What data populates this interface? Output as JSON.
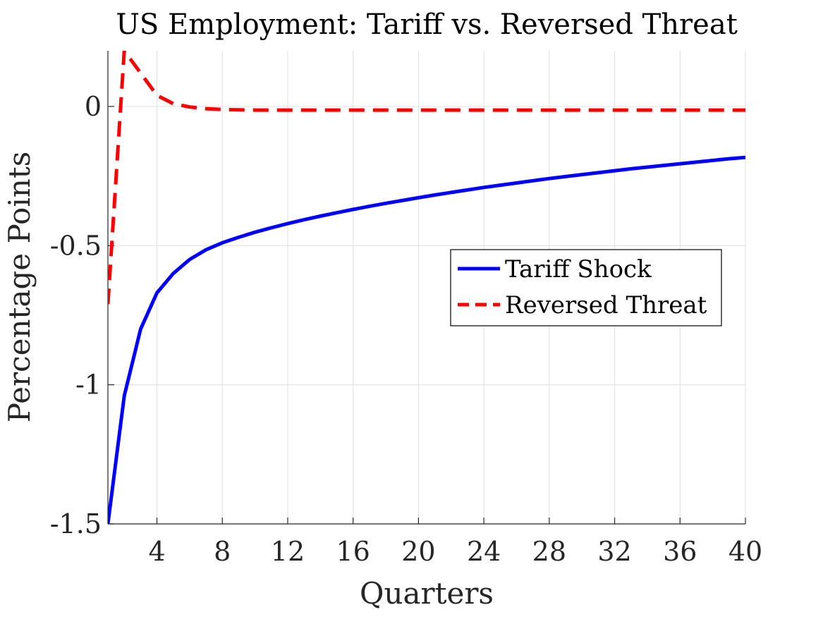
{
  "chart_data": {
    "type": "line",
    "title": "US Employment: Tariff vs. Reversed Threat",
    "xlabel": "Quarters",
    "ylabel": "Percentage Points",
    "xlim": [
      1,
      40
    ],
    "ylim": [
      -1.5,
      0.2
    ],
    "xticks": [
      4,
      8,
      12,
      16,
      20,
      24,
      28,
      32,
      36,
      40
    ],
    "xtick_labels": [
      "4",
      "8",
      "12",
      "16",
      "20",
      "24",
      "28",
      "32",
      "36",
      "40"
    ],
    "yticks": [
      -1.5,
      -1,
      -0.5,
      0
    ],
    "ytick_labels": [
      "-1.5",
      "-1",
      "-0.5",
      "0"
    ],
    "grid": true,
    "legend_position": "center-right",
    "series": [
      {
        "name": "Tariff Shock",
        "color": "#0000ff",
        "style": "solid",
        "x": [
          1,
          2,
          3,
          4,
          5,
          6,
          7,
          8,
          9,
          10,
          11,
          12,
          13,
          14,
          15,
          16,
          17,
          18,
          19,
          20,
          21,
          22,
          23,
          24,
          25,
          26,
          27,
          28,
          29,
          30,
          31,
          32,
          33,
          34,
          35,
          36,
          37,
          38,
          39,
          40
        ],
        "y": [
          -1.5,
          -1.04,
          -0.8,
          -0.67,
          -0.6,
          -0.55,
          -0.515,
          -0.49,
          -0.47,
          -0.452,
          -0.436,
          -0.421,
          -0.407,
          -0.394,
          -0.382,
          -0.37,
          -0.359,
          -0.348,
          -0.338,
          -0.328,
          -0.318,
          -0.309,
          -0.3,
          -0.291,
          -0.283,
          -0.275,
          -0.267,
          -0.259,
          -0.252,
          -0.245,
          -0.238,
          -0.231,
          -0.224,
          -0.218,
          -0.212,
          -0.206,
          -0.2,
          -0.194,
          -0.188,
          -0.183
        ]
      },
      {
        "name": "Reversed Threat",
        "color": "#ff0000",
        "style": "dashed",
        "x": [
          1,
          2,
          3,
          4,
          5,
          6,
          7,
          8,
          9,
          10,
          11,
          12,
          13,
          14,
          15,
          16,
          17,
          18,
          19,
          20,
          21,
          22,
          23,
          24,
          25,
          26,
          27,
          28,
          29,
          30,
          31,
          32,
          33,
          34,
          35,
          36,
          37,
          38,
          39,
          40
        ],
        "y": [
          -0.71,
          0.2,
          0.12,
          0.04,
          0.01,
          -0.002,
          -0.008,
          -0.011,
          -0.012,
          -0.013,
          -0.013,
          -0.013,
          -0.013,
          -0.013,
          -0.013,
          -0.013,
          -0.013,
          -0.013,
          -0.013,
          -0.013,
          -0.013,
          -0.013,
          -0.013,
          -0.013,
          -0.013,
          -0.013,
          -0.013,
          -0.013,
          -0.013,
          -0.013,
          -0.013,
          -0.013,
          -0.013,
          -0.013,
          -0.013,
          -0.013,
          -0.013,
          -0.013,
          -0.013,
          -0.013
        ]
      }
    ]
  }
}
